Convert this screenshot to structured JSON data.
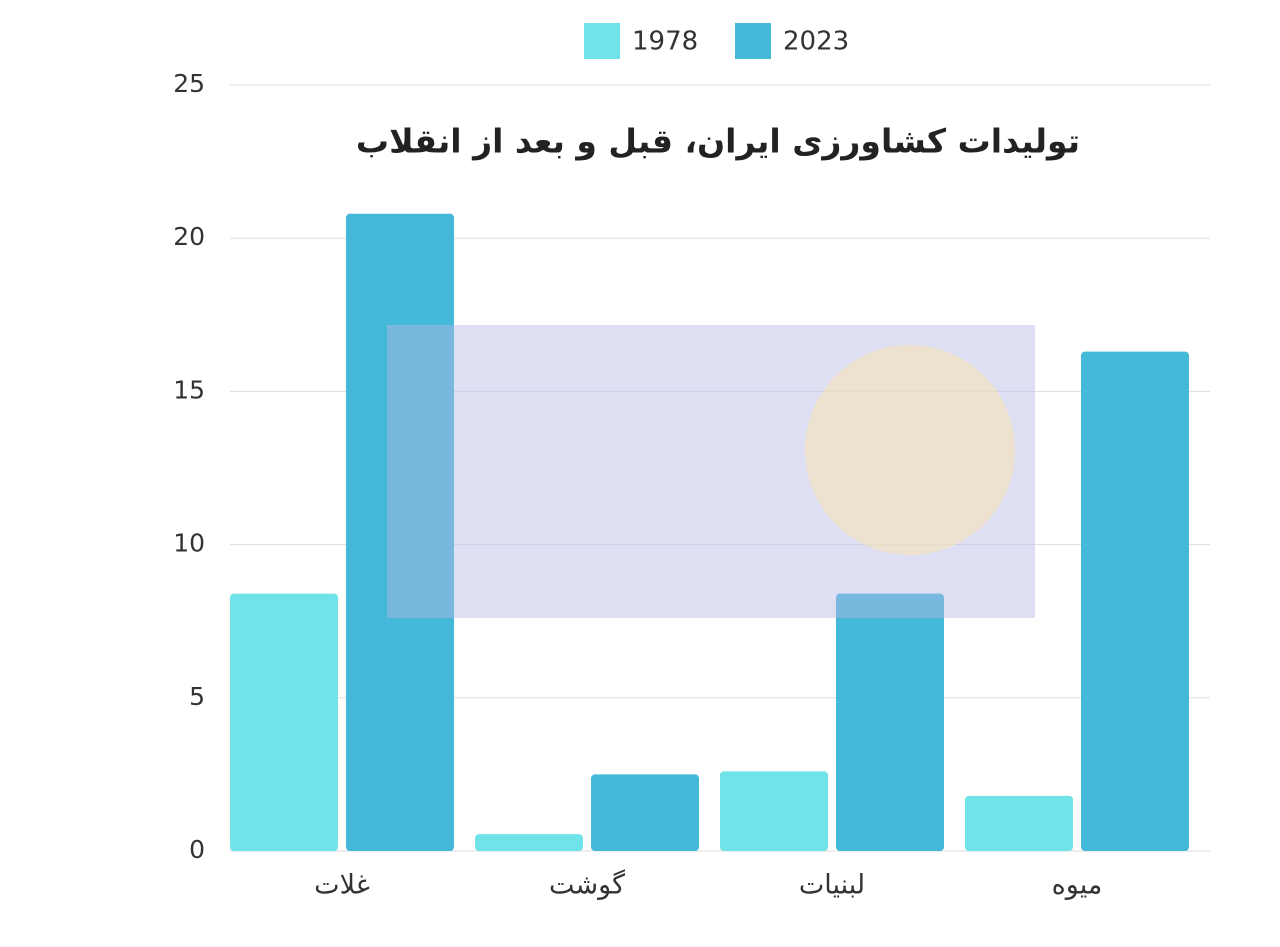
{
  "chart_data": {
    "type": "bar",
    "title": "تولیدات کشاورزی ایران، قبل و بعد از انقلاب",
    "categories": [
      "غلات",
      "گوشت",
      "لبنیات",
      "میوه"
    ],
    "series": [
      {
        "name": "1978",
        "color": "#6fe3e8",
        "values": [
          8.4,
          0.55,
          2.6,
          1.8
        ]
      },
      {
        "name": "2023",
        "color": "#44b8d8",
        "values": [
          20.8,
          2.5,
          8.4,
          16.3
        ]
      }
    ],
    "ylim": [
      0,
      25
    ],
    "yticks": [
      0,
      5,
      10,
      15,
      20,
      25
    ],
    "grid": true
  }
}
